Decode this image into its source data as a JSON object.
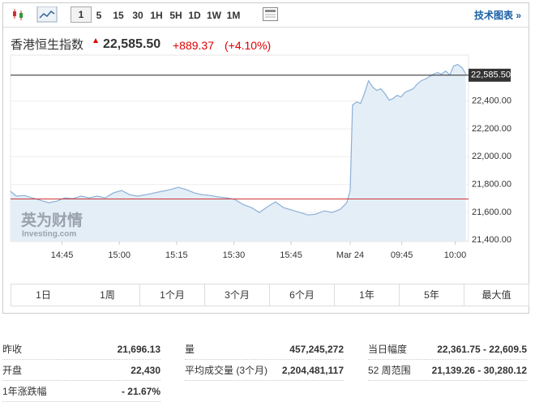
{
  "toolbar": {
    "intervals": [
      "1",
      "5",
      "15",
      "30",
      "1H",
      "5H",
      "1D",
      "1W",
      "1M"
    ],
    "technical_link": "技术图表 »"
  },
  "header": {
    "name": "香港恒生指数",
    "price": "22,585.50",
    "change": "+889.37",
    "change_pct": "(+4.10%)"
  },
  "chart_data": {
    "type": "line",
    "x": [
      0,
      1.5,
      3.6,
      5.7,
      7.9,
      10,
      12.1,
      14.2,
      16.3,
      18.5,
      20.6,
      22.7,
      24.8,
      26.9,
      29.1,
      31.2,
      33.3,
      35.5,
      37.6,
      39.7,
      41.8,
      43.9,
      46.1,
      48.2,
      50.3,
      52.4,
      54.6,
      56.7,
      58.8,
      60.9,
      63.1,
      65.2,
      67.3,
      69.4,
      71.5,
      73.7,
      75.8,
      77.9,
      80,
      82.2,
      84.3,
      86.4,
      88.1,
      89,
      89.6,
      90.7,
      91.7,
      92.8,
      93.8,
      94.9,
      96,
      97,
      98.1,
      99.2,
      100.2,
      101.3,
      102.3,
      103.4,
      104.5,
      105.5,
      106.6,
      107.6,
      108.7,
      109.8,
      110.8,
      111.9,
      112.9,
      114,
      115.1,
      116.1,
      117.2,
      118.3,
      119.3
    ],
    "series": [
      {
        "color": "#8cb0d6",
        "values": [
          21751,
          21716,
          21721,
          21704,
          21686,
          21669,
          21680,
          21704,
          21698,
          21716,
          21704,
          21716,
          21704,
          21739,
          21757,
          21727,
          21716,
          21727,
          21739,
          21751,
          21762,
          21780,
          21762,
          21739,
          21727,
          21721,
          21710,
          21704,
          21692,
          21657,
          21634,
          21599,
          21640,
          21675,
          21634,
          21616,
          21599,
          21581,
          21587,
          21610,
          21599,
          21622,
          21669,
          21757,
          22371,
          22394,
          22382,
          22459,
          22546,
          22499,
          22476,
          22488,
          22453,
          22406,
          22418,
          22441,
          22429,
          22464,
          22476,
          22488,
          22523,
          22546,
          22558,
          22576,
          22593,
          22605,
          22593,
          22616,
          22587,
          22652,
          22663,
          22640,
          22593
        ]
      }
    ],
    "xlim": [
      0,
      120
    ],
    "xticks": [
      {
        "value": 13.5,
        "label": "14:45"
      },
      {
        "value": 28.5,
        "label": "15:00"
      },
      {
        "value": 43.5,
        "label": "15:15"
      },
      {
        "value": 58.5,
        "label": "15:30"
      },
      {
        "value": 73.5,
        "label": "15:45"
      },
      {
        "value": 89,
        "label": "Mar 24"
      },
      {
        "value": 102.5,
        "label": "09:45"
      },
      {
        "value": 116.5,
        "label": "10:00"
      }
    ],
    "ylim": [
      21390,
      22730
    ],
    "yticks": [
      {
        "value": 21400,
        "label": "21,400.00"
      },
      {
        "value": 21600,
        "label": "21,600.00"
      },
      {
        "value": 21800,
        "label": "21,800.00"
      },
      {
        "value": 22000,
        "label": "22,000.00"
      },
      {
        "value": 22200,
        "label": "22,200.00"
      },
      {
        "value": 22400,
        "label": "22,400.00"
      }
    ],
    "last_price": {
      "value": 22585.5,
      "label": "22,585.50"
    },
    "previous_close": 21696.13,
    "watermark": [
      "英为财情",
      "Investing.com"
    ]
  },
  "periods": [
    "1日",
    "1周",
    "1个月",
    "3个月",
    "6个月",
    "1年",
    "5年",
    "最大值"
  ],
  "stats": [
    [
      [
        "昨收",
        "21,696.13"
      ],
      [
        "量",
        "457,245,272"
      ],
      [
        "当日幅度",
        "22,361.75 - 22,609.5"
      ]
    ],
    [
      [
        "开盘",
        "22,430"
      ],
      [
        "平均成交量 (3个月)",
        "2,204,481,117"
      ],
      [
        "52 周范围",
        "21,139.26 - 30,280.12"
      ]
    ],
    [
      [
        "1年涨跌幅",
        "- 21.67%"
      ]
    ]
  ]
}
